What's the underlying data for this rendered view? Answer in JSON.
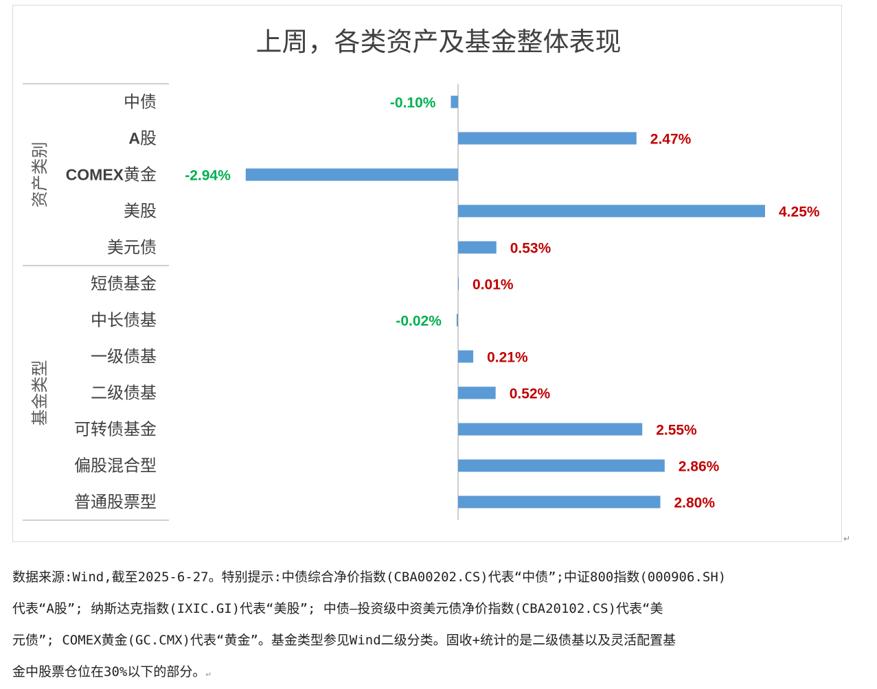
{
  "chart_data": {
    "type": "bar",
    "orientation": "horizontal",
    "title": "上周，各类资产及基金整体表现",
    "groups": [
      {
        "name": "资产类别",
        "categories": [
          "中债",
          "A股",
          "COMEX黄金",
          "美股",
          "美元债"
        ]
      },
      {
        "name": "基金类型",
        "categories": [
          "短债基金",
          "中长债基",
          "一级债基",
          "二级债基",
          "可转债基金",
          "偏股混合型",
          "普通股票型"
        ]
      }
    ],
    "categories": [
      "中债",
      "A股",
      "COMEX黄金",
      "美股",
      "美元债",
      "短债基金",
      "中长债基",
      "一级债基",
      "二级债基",
      "可转债基金",
      "偏股混合型",
      "普通股票型"
    ],
    "values": [
      -0.1,
      2.47,
      -2.94,
      4.25,
      0.53,
      0.01,
      -0.02,
      0.21,
      0.52,
      2.55,
      2.86,
      2.8
    ],
    "value_labels": [
      "-0.10%",
      "2.47%",
      "-2.94%",
      "4.25%",
      "0.53%",
      "0.01%",
      "-0.02%",
      "0.21%",
      "0.52%",
      "2.55%",
      "2.86%",
      "2.80%"
    ],
    "xlim": [
      -2.94,
      4.25
    ],
    "grid": false,
    "colors": {
      "bar": "#5b9bd5",
      "positive_label": "#c00000",
      "negative_label": "#00b050",
      "axis": "#bfbfbf",
      "title": "#404040"
    }
  },
  "note": {
    "lines": [
      "数据来源:Wind,截至2025-6-27。特别提示:中债综合净价指数(CBA00202.CS)代表“中债”;中证800指数(000906.SH)",
      "代表“A股”; 纳斯达克指数(IXIC.GI)代表“美股”; 中债—投资级中资美元债净价指数(CBA20102.CS)代表“美",
      "元债”; COMEX黄金(GC.CMX)代表“黄金”。基金类型参见Wind二级分类。固收+统计的是二级债基以及灵活配置基",
      "金中股票仓位在30%以下的部分。"
    ],
    "return_mark": "↵"
  }
}
